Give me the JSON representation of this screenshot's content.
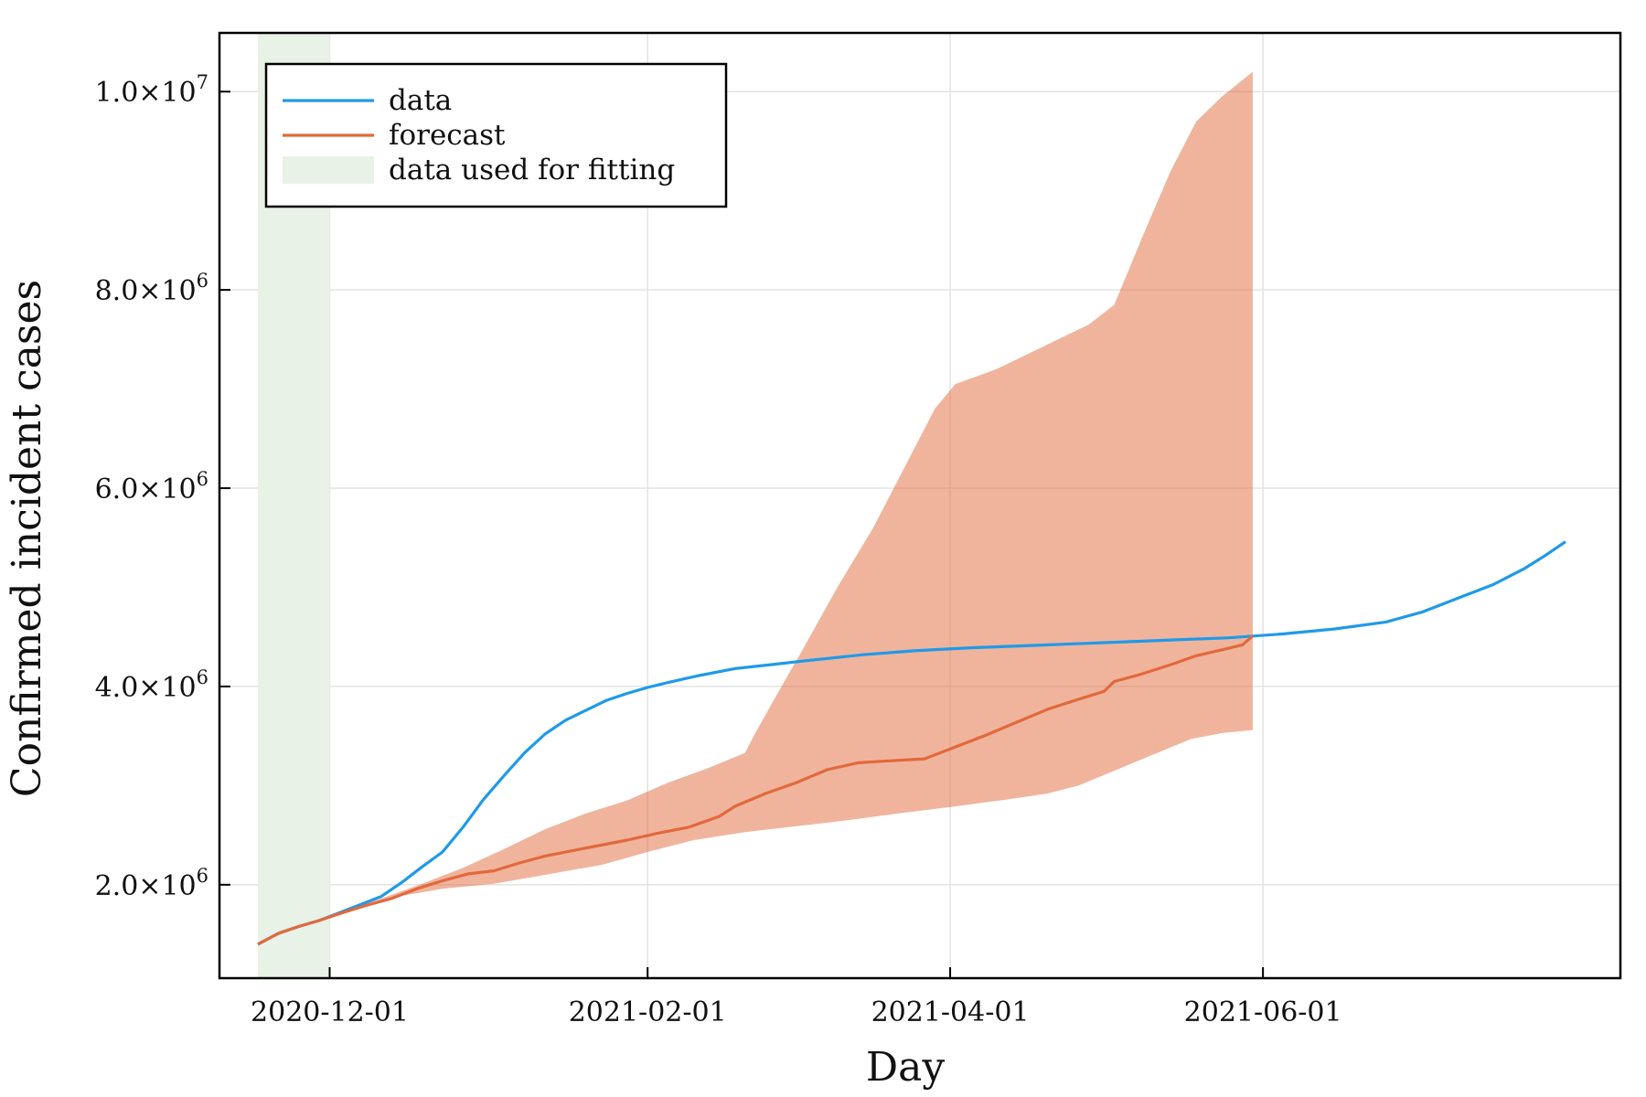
{
  "chart_data": {
    "type": "line",
    "xlabel": "Day",
    "ylabel": "Confirmed incident cases",
    "x_range": [
      "2020-11-17",
      "2021-07-30"
    ],
    "ylim": [
      1150000,
      10500000
    ],
    "grid": true,
    "legend_position": "top-left",
    "x_ticks": [
      {
        "date": "2020-12-01",
        "label": "2020-12-01"
      },
      {
        "date": "2021-02-01",
        "label": "2021-02-01"
      },
      {
        "date": "2021-04-01",
        "label": "2021-04-01"
      },
      {
        "date": "2021-06-01",
        "label": "2021-06-01"
      }
    ],
    "y_ticks": [
      {
        "value": 2000000,
        "mantissa": "2.0",
        "exponent": "6"
      },
      {
        "value": 4000000,
        "mantissa": "4.0",
        "exponent": "6"
      },
      {
        "value": 6000000,
        "mantissa": "6.0",
        "exponent": "6"
      },
      {
        "value": 8000000,
        "mantissa": "8.0",
        "exponent": "6"
      },
      {
        "value": 10000000,
        "mantissa": "1.0",
        "exponent": "7"
      }
    ],
    "times_symbol": "×10",
    "legend": [
      {
        "label": "data",
        "color": "#1f9ae8",
        "kind": "line"
      },
      {
        "label": "forecast",
        "color": "#e2693b",
        "kind": "line"
      },
      {
        "label": "data used for fitting",
        "color": "#e8f2e6",
        "kind": "band"
      }
    ],
    "fit_window": {
      "start": "2020-11-17",
      "end": "2020-12-01",
      "color": "#e8f2e6"
    },
    "series": [
      {
        "name": "data",
        "color": "#1f9ae8",
        "points": [
          [
            "2020-11-17",
            1400000
          ],
          [
            "2020-11-21",
            1510000
          ],
          [
            "2020-11-25",
            1580000
          ],
          [
            "2020-11-29",
            1640000
          ],
          [
            "2020-12-03",
            1720000
          ],
          [
            "2020-12-07",
            1800000
          ],
          [
            "2020-12-11",
            1880000
          ],
          [
            "2020-12-15",
            2020000
          ],
          [
            "2020-12-19",
            2180000
          ],
          [
            "2020-12-23",
            2330000
          ],
          [
            "2020-12-27",
            2580000
          ],
          [
            "2020-12-31",
            2860000
          ],
          [
            "2021-01-04",
            3100000
          ],
          [
            "2021-01-08",
            3330000
          ],
          [
            "2021-01-12",
            3520000
          ],
          [
            "2021-01-16",
            3660000
          ],
          [
            "2021-01-20",
            3760000
          ],
          [
            "2021-01-24",
            3860000
          ],
          [
            "2021-01-28",
            3930000
          ],
          [
            "2021-02-01",
            3990000
          ],
          [
            "2021-02-05",
            4040000
          ],
          [
            "2021-02-11",
            4110000
          ],
          [
            "2021-02-18",
            4180000
          ],
          [
            "2021-02-25",
            4220000
          ],
          [
            "2021-03-04",
            4260000
          ],
          [
            "2021-03-15",
            4320000
          ],
          [
            "2021-03-25",
            4360000
          ],
          [
            "2021-04-05",
            4390000
          ],
          [
            "2021-04-15",
            4410000
          ],
          [
            "2021-04-25",
            4430000
          ],
          [
            "2021-05-05",
            4450000
          ],
          [
            "2021-05-15",
            4470000
          ],
          [
            "2021-05-25",
            4490000
          ],
          [
            "2021-06-05",
            4530000
          ],
          [
            "2021-06-15",
            4580000
          ],
          [
            "2021-06-25",
            4650000
          ],
          [
            "2021-07-02",
            4750000
          ],
          [
            "2021-07-09",
            4890000
          ],
          [
            "2021-07-16",
            5030000
          ],
          [
            "2021-07-22",
            5190000
          ],
          [
            "2021-07-26",
            5320000
          ],
          [
            "2021-07-30",
            5460000
          ]
        ]
      },
      {
        "name": "forecast",
        "color": "#e2693b",
        "points": [
          [
            "2020-11-17",
            1400000
          ],
          [
            "2020-11-21",
            1510000
          ],
          [
            "2020-11-25",
            1580000
          ],
          [
            "2020-11-29",
            1640000
          ],
          [
            "2020-12-03",
            1710000
          ],
          [
            "2020-12-08",
            1790000
          ],
          [
            "2020-12-13",
            1860000
          ],
          [
            "2020-12-18",
            1960000
          ],
          [
            "2020-12-23",
            2040000
          ],
          [
            "2020-12-28",
            2110000
          ],
          [
            "2021-01-02",
            2140000
          ],
          [
            "2021-01-07",
            2220000
          ],
          [
            "2021-01-12",
            2290000
          ],
          [
            "2021-01-17",
            2340000
          ],
          [
            "2021-01-22",
            2390000
          ],
          [
            "2021-01-28",
            2450000
          ],
          [
            "2021-02-03",
            2520000
          ],
          [
            "2021-02-09",
            2580000
          ],
          [
            "2021-02-15",
            2690000
          ],
          [
            "2021-02-18",
            2790000
          ],
          [
            "2021-02-24",
            2920000
          ],
          [
            "2021-03-02",
            3030000
          ],
          [
            "2021-03-08",
            3160000
          ],
          [
            "2021-03-14",
            3230000
          ],
          [
            "2021-03-20",
            3250000
          ],
          [
            "2021-03-27",
            3270000
          ],
          [
            "2021-04-02",
            3390000
          ],
          [
            "2021-04-08",
            3510000
          ],
          [
            "2021-04-14",
            3640000
          ],
          [
            "2021-04-20",
            3770000
          ],
          [
            "2021-04-26",
            3870000
          ],
          [
            "2021-05-01",
            3950000
          ],
          [
            "2021-05-03",
            4050000
          ],
          [
            "2021-05-08",
            4120000
          ],
          [
            "2021-05-14",
            4220000
          ],
          [
            "2021-05-19",
            4310000
          ],
          [
            "2021-05-24",
            4370000
          ],
          [
            "2021-05-28",
            4420000
          ],
          [
            "2021-05-30",
            4510000
          ]
        ]
      }
    ],
    "forecast_band": {
      "color": "#e2693b",
      "opacity": 0.5,
      "upper": [
        [
          "2020-11-17",
          1400000
        ],
        [
          "2020-11-25",
          1580000
        ],
        [
          "2020-12-03",
          1720000
        ],
        [
          "2020-12-11",
          1860000
        ],
        [
          "2020-12-19",
          2010000
        ],
        [
          "2020-12-27",
          2170000
        ],
        [
          "2021-01-04",
          2360000
        ],
        [
          "2021-01-12",
          2560000
        ],
        [
          "2021-01-20",
          2720000
        ],
        [
          "2021-01-28",
          2850000
        ],
        [
          "2021-02-05",
          3030000
        ],
        [
          "2021-02-13",
          3180000
        ],
        [
          "2021-02-20",
          3330000
        ],
        [
          "2021-02-22",
          3530000
        ],
        [
          "2021-02-26",
          3900000
        ],
        [
          "2021-03-03",
          4350000
        ],
        [
          "2021-03-10",
          5000000
        ],
        [
          "2021-03-17",
          5600000
        ],
        [
          "2021-03-24",
          6300000
        ],
        [
          "2021-03-29",
          6800000
        ],
        [
          "2021-04-02",
          7050000
        ],
        [
          "2021-04-10",
          7200000
        ],
        [
          "2021-04-20",
          7450000
        ],
        [
          "2021-04-28",
          7650000
        ],
        [
          "2021-05-03",
          7850000
        ],
        [
          "2021-05-09",
          8600000
        ],
        [
          "2021-05-14",
          9200000
        ],
        [
          "2021-05-19",
          9700000
        ],
        [
          "2021-05-24",
          9950000
        ],
        [
          "2021-05-30",
          10200000
        ]
      ],
      "lower": [
        [
          "2021-05-30",
          3560000
        ],
        [
          "2021-05-24",
          3530000
        ],
        [
          "2021-05-18",
          3470000
        ],
        [
          "2021-05-10",
          3300000
        ],
        [
          "2021-05-03",
          3150000
        ],
        [
          "2021-04-26",
          3000000
        ],
        [
          "2021-04-20",
          2920000
        ],
        [
          "2021-04-12",
          2860000
        ],
        [
          "2021-04-02",
          2790000
        ],
        [
          "2021-03-22",
          2720000
        ],
        [
          "2021-03-12",
          2650000
        ],
        [
          "2021-03-02",
          2590000
        ],
        [
          "2021-02-20",
          2530000
        ],
        [
          "2021-02-10",
          2450000
        ],
        [
          "2021-02-01",
          2330000
        ],
        [
          "2021-01-23",
          2200000
        ],
        [
          "2021-01-12",
          2100000
        ],
        [
          "2021-01-02",
          2010000
        ],
        [
          "2020-12-23",
          1960000
        ],
        [
          "2020-12-13",
          1870000
        ],
        [
          "2020-12-05",
          1750000
        ],
        [
          "2020-11-29",
          1640000
        ],
        [
          "2020-11-21",
          1500000
        ],
        [
          "2020-11-17",
          1400000
        ]
      ]
    }
  }
}
